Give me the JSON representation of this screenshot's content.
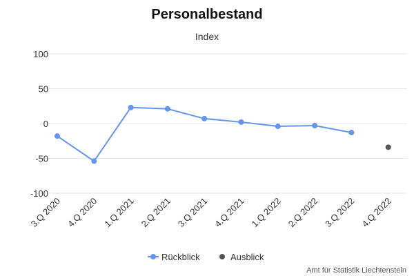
{
  "chart_data": {
    "type": "line",
    "title": "Personalbestand",
    "subtitle": "Index",
    "categories": [
      "3.Q 2020",
      "4.Q 2020",
      "1.Q 2021",
      "2.Q 2021",
      "3.Q 2021",
      "4.Q 2021",
      "1.Q 2022",
      "2.Q 2022",
      "3.Q 2022",
      "4.Q 2022"
    ],
    "ylim": [
      -100,
      100
    ],
    "yticks": [
      "100",
      "50",
      "0",
      "-50",
      "-100"
    ],
    "grid": true,
    "legend": "bottom-center",
    "series": [
      {
        "name": "Rückblick",
        "color": "#6495ed",
        "line": true,
        "values": [
          -18,
          -54,
          23,
          21,
          7,
          2,
          -4,
          -3,
          -13,
          null
        ]
      },
      {
        "name": "Ausblick",
        "color": "#555555",
        "line": false,
        "values": [
          null,
          null,
          null,
          null,
          null,
          null,
          null,
          null,
          null,
          -34
        ]
      }
    ],
    "credit": "Amt für Statistik Liechtenstein"
  }
}
